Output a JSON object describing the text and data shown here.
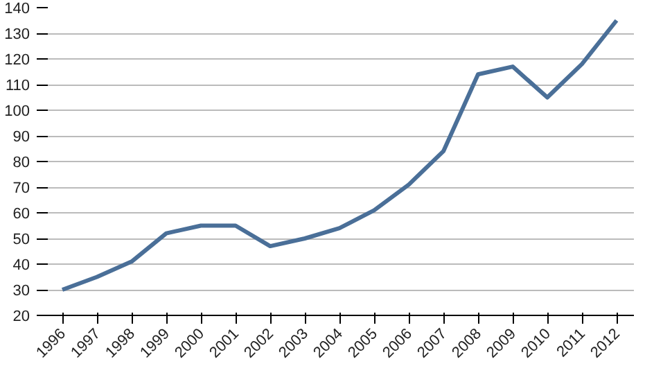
{
  "chart_data": {
    "type": "line",
    "categories": [
      "1996",
      "1997",
      "1998",
      "1999",
      "2000",
      "2001",
      "2002",
      "2003",
      "2004",
      "2005",
      "2006",
      "2007",
      "2008",
      "2009",
      "2010",
      "2011",
      "2012"
    ],
    "series": [
      {
        "color": "#4a6f98",
        "values": [
          30,
          35,
          41,
          52,
          55,
          55,
          47,
          50,
          54,
          61,
          71,
          84,
          114,
          117,
          105,
          118,
          135
        ]
      }
    ],
    "ylim": [
      20,
      140
    ],
    "yticks": [
      20,
      30,
      40,
      50,
      60,
      70,
      80,
      90,
      100,
      110,
      120,
      130,
      140
    ],
    "grid": "y",
    "marker": "none",
    "line_style": "solid"
  }
}
